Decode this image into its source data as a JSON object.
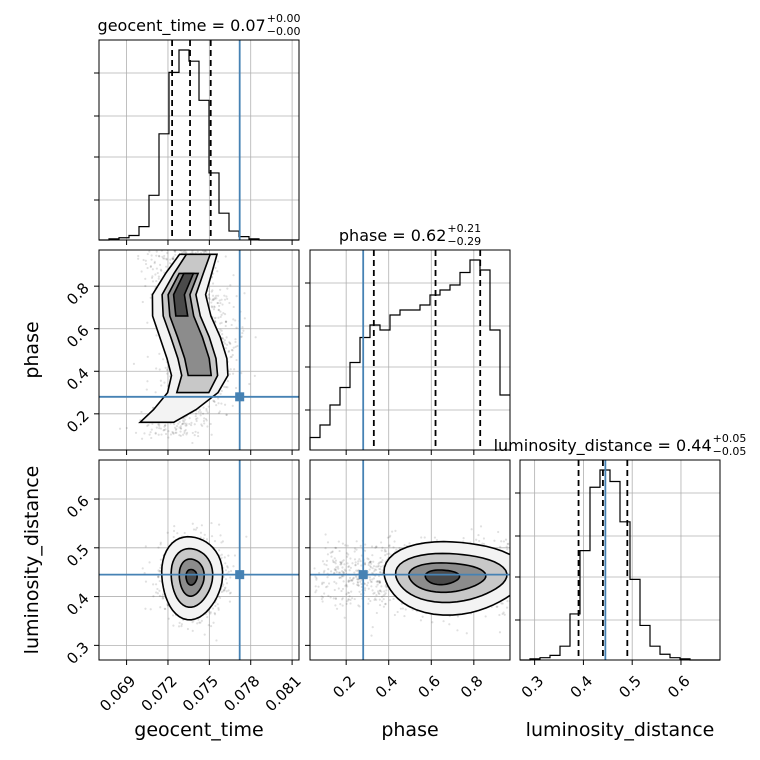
{
  "chart_data": {
    "type": "corner",
    "truth_color": "#4682b4",
    "parameters": [
      "geocent_time",
      "phase",
      "luminosity_distance"
    ],
    "titles": [
      {
        "text": "geocent_time = 0.07",
        "plus": "+0.00",
        "minus": "−0.00"
      },
      {
        "text": "phase = 0.62",
        "plus": "+0.21",
        "minus": "−0.29"
      },
      {
        "text": "luminosity_distance = 0.44",
        "plus": "+0.05",
        "minus": "−0.05"
      }
    ],
    "xlabels": [
      "geocent_time",
      "phase",
      "luminosity_distance"
    ],
    "ylabels": [
      "",
      "phase",
      "luminosity_distance"
    ],
    "ticks": {
      "geocent_time": [
        "0.069",
        "0.072",
        "0.075",
        "0.078",
        "0.081"
      ],
      "phase": [
        "0.2",
        "0.4",
        "0.6",
        "0.8"
      ],
      "phase_y": [
        "0.2",
        "0.4",
        "0.6",
        "0.8"
      ],
      "luminosity_distance": [
        "0.3",
        "0.4",
        "0.5",
        "0.6"
      ]
    },
    "ranges": {
      "geocent_time": [
        0.067,
        0.0815
      ],
      "phase": [
        0.03,
        0.97
      ],
      "luminosity_distance": [
        0.27,
        0.68
      ]
    },
    "truths": {
      "geocent_time": 0.0772,
      "phase": 0.28,
      "luminosity_distance": 0.445
    },
    "quantiles": {
      "geocent_time": [
        0.0723,
        0.0736,
        0.0751
      ],
      "phase": [
        0.33,
        0.62,
        0.83
      ],
      "luminosity_distance": [
        0.39,
        0.44,
        0.49
      ]
    },
    "hist_geocent_time": {
      "edges_start": 0.067,
      "bin_width": 0.000725,
      "counts": [
        0,
        1,
        2,
        4,
        12,
        40,
        95,
        150,
        170,
        160,
        125,
        60,
        24,
        8,
        3,
        1,
        0,
        0,
        0,
        0
      ]
    },
    "hist_phase": {
      "edges_start": 0.03,
      "bin_width": 0.047,
      "counts": [
        5,
        10,
        18,
        25,
        35,
        45,
        50,
        48,
        54,
        56,
        56,
        58,
        62,
        64,
        66,
        71,
        76,
        72,
        48,
        22
      ]
    },
    "hist_luminosity_distance": {
      "edges_start": 0.27,
      "bin_width": 0.0205,
      "counts": [
        0,
        1,
        2,
        4,
        12,
        40,
        95,
        150,
        165,
        155,
        120,
        70,
        30,
        12,
        5,
        2,
        1,
        0,
        0,
        0
      ]
    },
    "grid": true
  }
}
